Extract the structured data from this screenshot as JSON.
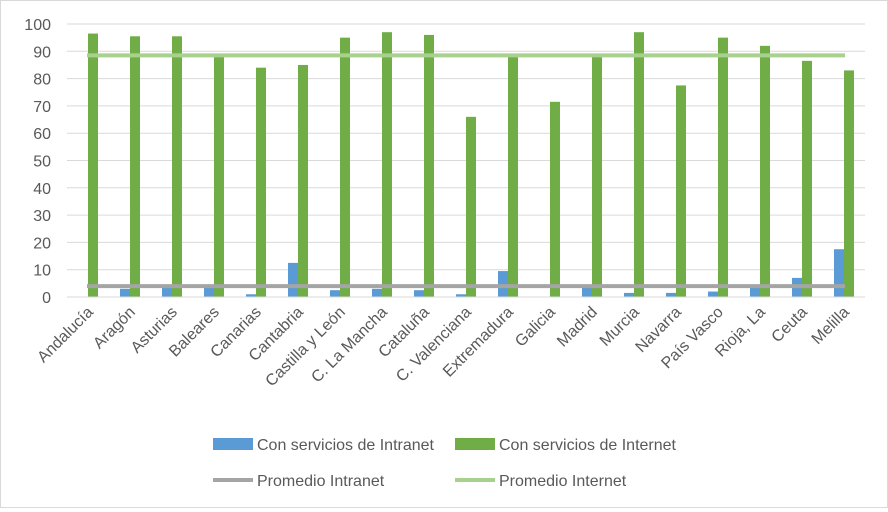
{
  "chart_data": {
    "type": "bar",
    "categories": [
      "Andalucía",
      "Aragón",
      "Asturias",
      "Baleares",
      "Canarias",
      "Cantabria",
      "Castilla y León",
      "C. La Mancha",
      "Cataluña",
      "C. Valenciana",
      "Extremadura",
      "Galicia",
      "Madrid",
      "Murcia",
      "Navarra",
      "País Vasco",
      "Rioja, La",
      "Ceuta",
      "Melilla"
    ],
    "series": [
      {
        "name": "Con servicios de Intranet",
        "type": "bar",
        "color": "#5b9bd5",
        "values": [
          0,
          3,
          4.5,
          4.5,
          1,
          12.5,
          2.5,
          3,
          2.5,
          1,
          9.5,
          0,
          4.5,
          1.5,
          1.5,
          2,
          4.5,
          7,
          17.5
        ]
      },
      {
        "name": "Con servicios de Internet",
        "type": "bar",
        "color": "#70ad47",
        "values": [
          96.5,
          95.5,
          95.5,
          88,
          84,
          85,
          95,
          97,
          96,
          66,
          88,
          71.5,
          88,
          97,
          77.5,
          95,
          92,
          86.5,
          83
        ]
      },
      {
        "name": "Promedio Intranet",
        "type": "line",
        "color": "#a5a5a5",
        "value": 4
      },
      {
        "name": "Promedio Internet",
        "type": "line",
        "color": "#a9d18e",
        "value": 88.5
      }
    ],
    "ylim": [
      0,
      100
    ],
    "yticks": [
      0,
      10,
      20,
      30,
      40,
      50,
      60,
      70,
      80,
      90,
      100
    ],
    "grid": true,
    "legend_position": "bottom"
  }
}
